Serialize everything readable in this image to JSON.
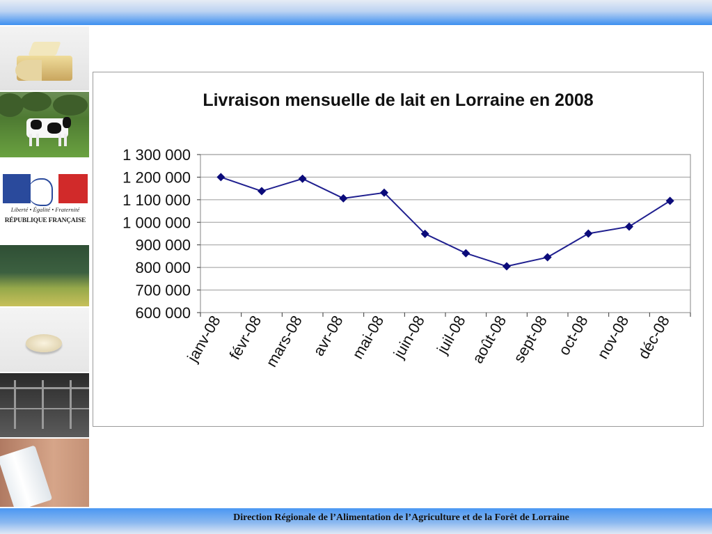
{
  "footer": {
    "text": "Direction Régionale de l’Alimentation de l’Agriculture et de la Forêt de Lorraine"
  },
  "side_panel": {
    "motto": "Liberté • Égalité • Fraternité",
    "republique": "RÉPUBLIQUE FRANÇAISE"
  },
  "colors": {
    "series_line": "#1f1f8f",
    "grid": "#9a9a9a",
    "band": "#3d8ff0"
  },
  "chart_data": {
    "type": "line",
    "title": "Livraison mensuelle de lait en Lorraine en 2008",
    "categories": [
      "janv-08",
      "févr-08",
      "mars-08",
      "avr-08",
      "mai-08",
      "juin-08",
      "juil-08",
      "août-08",
      "sept-08",
      "oct-08",
      "nov-08",
      "déc-08"
    ],
    "series": [
      {
        "values": [
          1200000,
          1138000,
          1193000,
          1106000,
          1131000,
          949000,
          863000,
          805000,
          845000,
          950000,
          981000,
          1095000
        ]
      }
    ],
    "ylim": [
      600000,
      1300000
    ],
    "yticks": [
      "600 000",
      "700 000",
      "800 000",
      "900 000",
      "1 000 000",
      "1 100 000",
      "1 200 000",
      "1 300 000"
    ],
    "grid": true,
    "legend": "none",
    "marker": "diamond"
  }
}
